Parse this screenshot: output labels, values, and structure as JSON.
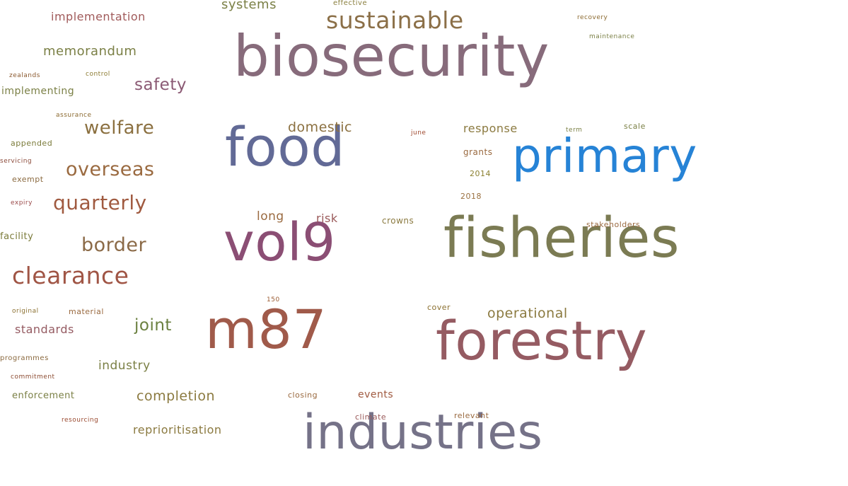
{
  "word_cloud": {
    "words": [
      {
        "text": "biosecurity",
        "color": "#876b7b"
      },
      {
        "text": "food",
        "color": "#626a96"
      },
      {
        "text": "primary",
        "color": "#2683d6"
      },
      {
        "text": "vol9",
        "color": "#8b4e74"
      },
      {
        "text": "fisheries",
        "color": "#7b7b53"
      },
      {
        "text": "m87",
        "color": "#a05a4a"
      },
      {
        "text": "forestry",
        "color": "#955b62"
      },
      {
        "text": "industries",
        "color": "#757288"
      },
      {
        "text": "sustainable",
        "color": "#8b6f47"
      },
      {
        "text": "systems",
        "color": "#7b8046"
      },
      {
        "text": "effective",
        "color": "#8b8040"
      },
      {
        "text": "implementation",
        "color": "#a05a5a"
      },
      {
        "text": "memorandum",
        "color": "#7b8046"
      },
      {
        "text": "zealands",
        "color": "#8b5a30"
      },
      {
        "text": "control",
        "color": "#8b7a30"
      },
      {
        "text": "implementing",
        "color": "#7b8046"
      },
      {
        "text": "safety",
        "color": "#8b5a74"
      },
      {
        "text": "assurance",
        "color": "#8b6a30"
      },
      {
        "text": "welfare",
        "color": "#8b7040"
      },
      {
        "text": "appended",
        "color": "#7b7b3a"
      },
      {
        "text": "servicing",
        "color": "#8b4a3a"
      },
      {
        "text": "overseas",
        "color": "#9a6a40"
      },
      {
        "text": "exempt",
        "color": "#8b6a40"
      },
      {
        "text": "quarterly",
        "color": "#a05a40"
      },
      {
        "text": "expiry",
        "color": "#9a4a4a"
      },
      {
        "text": "border",
        "color": "#8b6a47"
      },
      {
        "text": "facility",
        "color": "#7b7b3a"
      },
      {
        "text": "clearance",
        "color": "#a05545"
      },
      {
        "text": "original",
        "color": "#8b7030"
      },
      {
        "text": "material",
        "color": "#9a6a40"
      },
      {
        "text": "standards",
        "color": "#955b62"
      },
      {
        "text": "joint",
        "color": "#6b8040"
      },
      {
        "text": "programmes",
        "color": "#8b6a40"
      },
      {
        "text": "industry",
        "color": "#7b8046"
      },
      {
        "text": "commitment",
        "color": "#8b4a30"
      },
      {
        "text": "enforcement",
        "color": "#7b8046"
      },
      {
        "text": "completion",
        "color": "#8b7a40"
      },
      {
        "text": "resourcing",
        "color": "#9a4a30"
      },
      {
        "text": "reprioritisation",
        "color": "#8b7a40"
      },
      {
        "text": "domestic",
        "color": "#8b7040"
      },
      {
        "text": "long",
        "color": "#9a6a40"
      },
      {
        "text": "risk",
        "color": "#9a5a5a"
      },
      {
        "text": "crowns",
        "color": "#8b7a40"
      },
      {
        "text": "150",
        "color": "#9a5a30"
      },
      {
        "text": "closing",
        "color": "#9a6a40"
      },
      {
        "text": "events",
        "color": "#a05a40"
      },
      {
        "text": "climate",
        "color": "#9a5a5a"
      },
      {
        "text": "relevant",
        "color": "#9a6a40"
      },
      {
        "text": "cover",
        "color": "#8b7030"
      },
      {
        "text": "operational",
        "color": "#8b7a40"
      },
      {
        "text": "june",
        "color": "#a04a30"
      },
      {
        "text": "response",
        "color": "#8b7a40"
      },
      {
        "text": "grants",
        "color": "#9a6a40"
      },
      {
        "text": "2014",
        "color": "#8b8030"
      },
      {
        "text": "2018",
        "color": "#9a7040"
      },
      {
        "text": "term",
        "color": "#7b8046"
      },
      {
        "text": "scale",
        "color": "#7b8046"
      },
      {
        "text": "stakeholders",
        "color": "#9a6a40"
      },
      {
        "text": "recovery",
        "color": "#8b6a30"
      },
      {
        "text": "maintenance",
        "color": "#7b8046"
      }
    ]
  }
}
